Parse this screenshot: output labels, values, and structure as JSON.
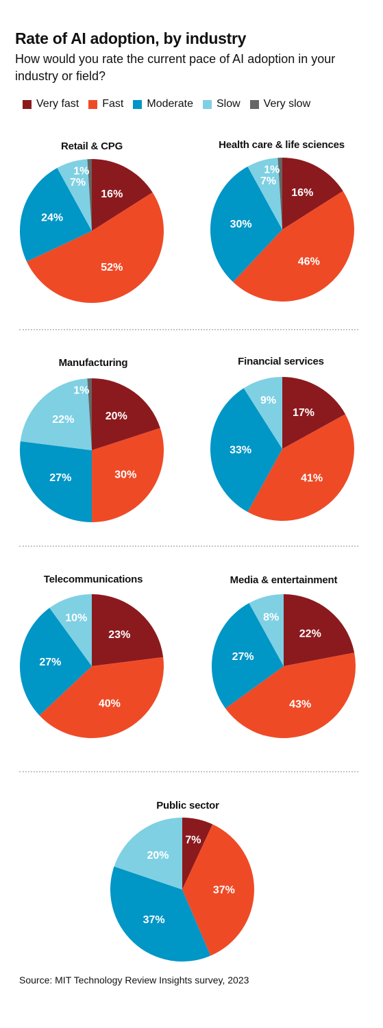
{
  "title": "Rate of AI adoption, by industry",
  "subtitle": "How would you rate the current pace of AI adoption in your industry or field?",
  "legend": [
    {
      "label": "Very fast",
      "color": "#8b1a1e"
    },
    {
      "label": "Fast",
      "color": "#ef4a26"
    },
    {
      "label": "Moderate",
      "color": "#0096c6"
    },
    {
      "label": "Slow",
      "color": "#7fd0e3"
    },
    {
      "label": "Very slow",
      "color": "#666666"
    }
  ],
  "source": "Source: MIT Technology Review Insights survey, 2023",
  "chart_data": [
    {
      "type": "pie",
      "title": "Retail & CPG",
      "slices": [
        {
          "category": "Very fast",
          "value": 16,
          "label": "16%"
        },
        {
          "category": "Fast",
          "value": 52,
          "label": "52%"
        },
        {
          "category": "Moderate",
          "value": 24,
          "label": "24%"
        },
        {
          "category": "Slow",
          "value": 7,
          "label": "7%"
        },
        {
          "category": "Very slow",
          "value": 1,
          "label": "1%"
        }
      ]
    },
    {
      "type": "pie",
      "title": "Health care & life sciences",
      "slices": [
        {
          "category": "Very fast",
          "value": 16,
          "label": "16%"
        },
        {
          "category": "Fast",
          "value": 46,
          "label": "46%"
        },
        {
          "category": "Moderate",
          "value": 30,
          "label": "30%"
        },
        {
          "category": "Slow",
          "value": 7,
          "label": "7%"
        },
        {
          "category": "Very slow",
          "value": 1,
          "label": "1%"
        }
      ]
    },
    {
      "type": "pie",
      "title": "Manufacturing",
      "slices": [
        {
          "category": "Very fast",
          "value": 20,
          "label": "20%"
        },
        {
          "category": "Fast",
          "value": 30,
          "label": "30%"
        },
        {
          "category": "Moderate",
          "value": 27,
          "label": "27%"
        },
        {
          "category": "Slow",
          "value": 22,
          "label": "22%"
        },
        {
          "category": "Very slow",
          "value": 1,
          "label": "1%"
        }
      ]
    },
    {
      "type": "pie",
      "title": "Financial services",
      "slices": [
        {
          "category": "Very fast",
          "value": 17,
          "label": "17%"
        },
        {
          "category": "Fast",
          "value": 41,
          "label": "41%"
        },
        {
          "category": "Moderate",
          "value": 33,
          "label": "33%"
        },
        {
          "category": "Slow",
          "value": 9,
          "label": "9%"
        }
      ]
    },
    {
      "type": "pie",
      "title": "Telecommunications",
      "slices": [
        {
          "category": "Very fast",
          "value": 23,
          "label": "23%"
        },
        {
          "category": "Fast",
          "value": 40,
          "label": "40%"
        },
        {
          "category": "Moderate",
          "value": 27,
          "label": "27%"
        },
        {
          "category": "Slow",
          "value": 10,
          "label": "10%"
        }
      ]
    },
    {
      "type": "pie",
      "title": "Media & entertainment",
      "slices": [
        {
          "category": "Very fast",
          "value": 22,
          "label": "22%"
        },
        {
          "category": "Fast",
          "value": 43,
          "label": "43%"
        },
        {
          "category": "Moderate",
          "value": 27,
          "label": "27%"
        },
        {
          "category": "Slow",
          "value": 8,
          "label": "8%"
        }
      ]
    },
    {
      "type": "pie",
      "title": "Public sector",
      "slices": [
        {
          "category": "Very fast",
          "value": 7,
          "label": "7%"
        },
        {
          "category": "Fast",
          "value": 37,
          "label": "37%"
        },
        {
          "category": "Moderate",
          "value": 37,
          "label": "37%"
        },
        {
          "category": "Slow",
          "value": 20,
          "label": "20%"
        }
      ]
    }
  ]
}
